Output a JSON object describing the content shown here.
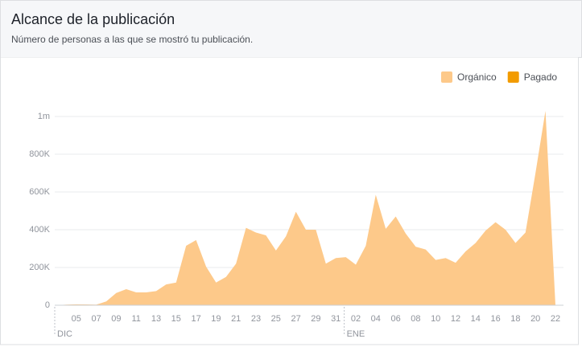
{
  "header": {
    "title": "Alcance de la publicación",
    "subtitle": "Número de personas a las que se mostró tu publicación."
  },
  "chart_data": {
    "type": "area",
    "categories": [
      null,
      null,
      "05",
      null,
      "07",
      null,
      "09",
      null,
      "11",
      null,
      "13",
      null,
      "15",
      null,
      "17",
      null,
      "19",
      null,
      "21",
      null,
      "23",
      null,
      "25",
      null,
      "27",
      null,
      "29",
      null,
      "31",
      null,
      "02",
      null,
      "04",
      null,
      "06",
      null,
      "08",
      null,
      "10",
      null,
      "12",
      null,
      "14",
      null,
      "16",
      null,
      "18",
      null,
      "20",
      null,
      "22"
    ],
    "month_labels": [
      {
        "index": 0,
        "label": "DIC"
      },
      {
        "index": 29,
        "label": "ENE"
      }
    ],
    "series": [
      {
        "name": "Orgánico",
        "color": "#fdc98a",
        "values": [
          0,
          3000,
          5000,
          4000,
          3000,
          20000,
          65000,
          85000,
          68000,
          68000,
          75000,
          110000,
          120000,
          315000,
          345000,
          205000,
          120000,
          150000,
          220000,
          410000,
          385000,
          370000,
          290000,
          365000,
          495000,
          400000,
          400000,
          220000,
          250000,
          255000,
          215000,
          315000,
          585000,
          405000,
          470000,
          380000,
          310000,
          295000,
          240000,
          250000,
          225000,
          285000,
          330000,
          395000,
          440000,
          400000,
          330000,
          385000,
          700000,
          1030000,
          0
        ]
      },
      {
        "name": "Pagado",
        "color": "#f29b00",
        "values": [
          0,
          0,
          0,
          0,
          0,
          0,
          0,
          0,
          0,
          0,
          0,
          0,
          0,
          0,
          0,
          0,
          0,
          0,
          0,
          0,
          0,
          0,
          0,
          0,
          0,
          0,
          0,
          0,
          0,
          0,
          0,
          0,
          0,
          0,
          0,
          0,
          0,
          0,
          0,
          0,
          0,
          0,
          0,
          0,
          0,
          0,
          0,
          0,
          0,
          0,
          0
        ]
      }
    ],
    "ylim": [
      0,
      1000000
    ],
    "yticks": [
      0,
      {
        "value": 200000,
        "label": "200K"
      },
      {
        "value": 400000,
        "label": "400K"
      },
      {
        "value": 600000,
        "label": "600K"
      },
      {
        "value": 800000,
        "label": "800K"
      },
      {
        "value": 1000000,
        "label": "1m"
      }
    ],
    "grid": true,
    "legend": "top-right"
  }
}
